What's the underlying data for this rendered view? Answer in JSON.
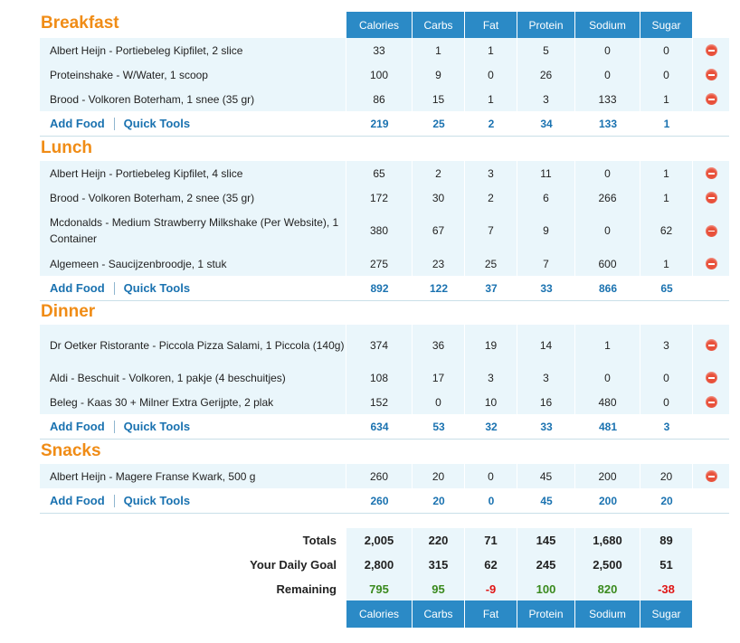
{
  "columns": [
    "Calories",
    "Carbs",
    "Fat",
    "Protein",
    "Sodium",
    "Sugar"
  ],
  "actions": {
    "add_food": "Add Food",
    "quick_tools": "Quick Tools"
  },
  "meals": [
    {
      "title": "Breakfast",
      "foods": [
        {
          "name": "Albert Heijn - Portiebeleg Kipfilet, 2 slice",
          "values": [
            "33",
            "1",
            "1",
            "5",
            "0",
            "0"
          ]
        },
        {
          "name": "Proteinshake - W/Water, 1 scoop",
          "values": [
            "100",
            "9",
            "0",
            "26",
            "0",
            "0"
          ]
        },
        {
          "name": "Brood - Volkoren Boterham, 1 snee (35 gr)",
          "values": [
            "86",
            "15",
            "1",
            "3",
            "133",
            "1"
          ]
        }
      ],
      "totals": [
        "219",
        "25",
        "2",
        "34",
        "133",
        "1"
      ]
    },
    {
      "title": "Lunch",
      "foods": [
        {
          "name": "Albert Heijn - Portiebeleg Kipfilet, 4 slice",
          "values": [
            "65",
            "2",
            "3",
            "11",
            "0",
            "1"
          ]
        },
        {
          "name": "Brood - Volkoren Boterham, 2 snee (35 gr)",
          "values": [
            "172",
            "30",
            "2",
            "6",
            "266",
            "1"
          ]
        },
        {
          "name": "Mcdonalds - Medium Strawberry Milkshake (Per Website), 1 Container",
          "values": [
            "380",
            "67",
            "7",
            "9",
            "0",
            "62"
          ]
        },
        {
          "name": "Algemeen - Saucijzenbroodje, 1 stuk",
          "values": [
            "275",
            "23",
            "25",
            "7",
            "600",
            "1"
          ]
        }
      ],
      "totals": [
        "892",
        "122",
        "37",
        "33",
        "866",
        "65"
      ]
    },
    {
      "title": "Dinner",
      "foods": [
        {
          "name": "Dr Oetker Ristorante - Piccola Pizza Salami, 1 Piccola (140g)",
          "values": [
            "374",
            "36",
            "19",
            "14",
            "1",
            "3"
          ]
        },
        {
          "name": "Aldi - Beschuit - Volkoren, 1 pakje (4 beschuitjes)",
          "values": [
            "108",
            "17",
            "3",
            "3",
            "0",
            "0"
          ]
        },
        {
          "name": "Beleg - Kaas 30 + Milner Extra Gerijpte, 2 plak",
          "values": [
            "152",
            "0",
            "10",
            "16",
            "480",
            "0"
          ]
        }
      ],
      "totals": [
        "634",
        "53",
        "32",
        "33",
        "481",
        "3"
      ]
    },
    {
      "title": "Snacks",
      "foods": [
        {
          "name": "Albert Heijn - Magere Franse Kwark, 500 g",
          "values": [
            "260",
            "20",
            "0",
            "45",
            "200",
            "20"
          ]
        }
      ],
      "totals": [
        "260",
        "20",
        "0",
        "45",
        "200",
        "20"
      ]
    }
  ],
  "summary": {
    "totals": {
      "label": "Totals",
      "values": [
        "2,005",
        "220",
        "71",
        "145",
        "1,680",
        "89"
      ]
    },
    "goal": {
      "label": "Your Daily Goal",
      "values": [
        "2,800",
        "315",
        "62",
        "245",
        "2,500",
        "51"
      ]
    },
    "remaining": {
      "label": "Remaining",
      "values": [
        "795",
        "95",
        "-9",
        "100",
        "820",
        "-38"
      ],
      "status": [
        "pos",
        "pos",
        "neg",
        "pos",
        "pos",
        "neg"
      ]
    }
  },
  "colors": {
    "accent": "#f08c16",
    "header": "#2b8ac6",
    "link": "#1a72b0",
    "row": "#eaf6fb",
    "positive": "#3a8a1e",
    "negative": "#e01616"
  }
}
